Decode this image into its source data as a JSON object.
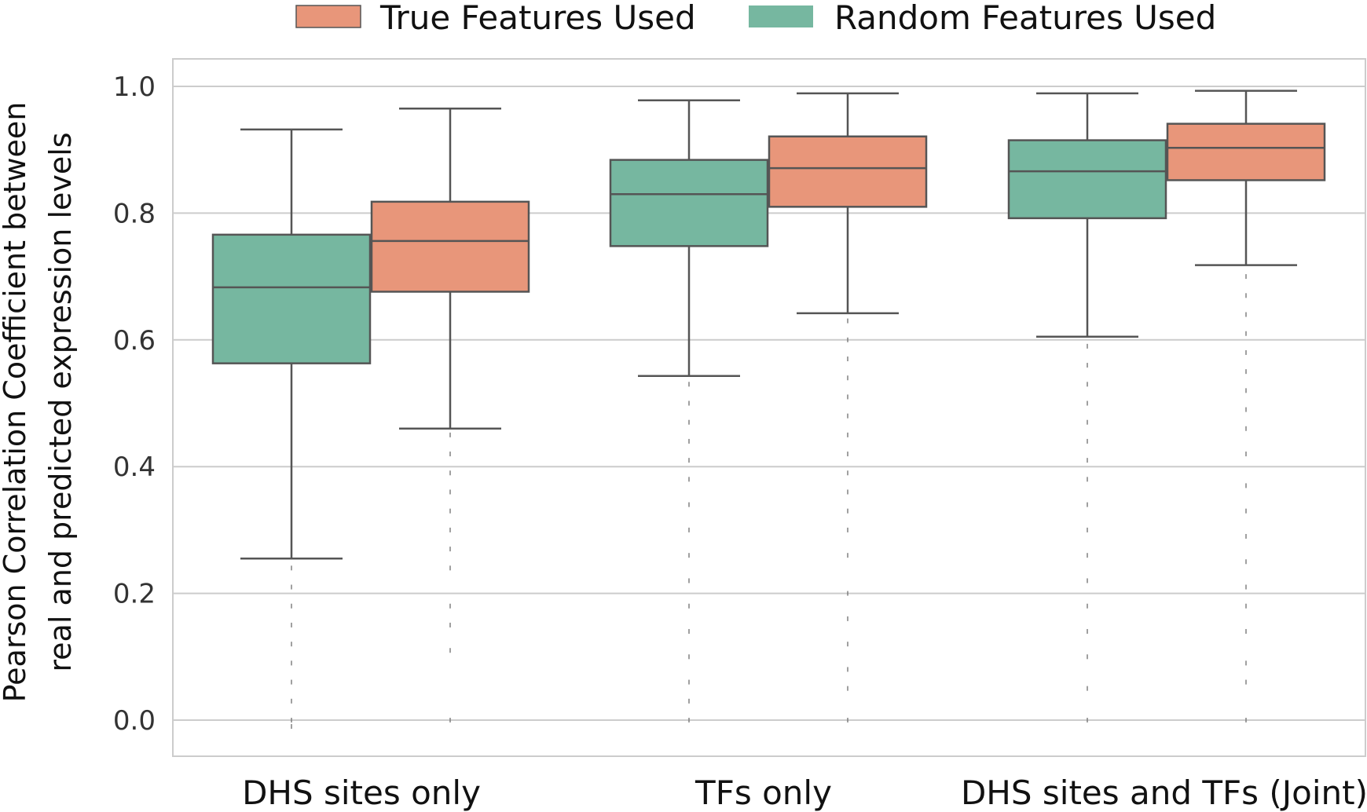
{
  "chart_data": {
    "type": "box",
    "title": "",
    "xlabel": "",
    "ylabel_lines": [
      "Pearson Correlation Coefficient between",
      "real and predicted expression levels"
    ],
    "ylim": [
      -0.06,
      1.045
    ],
    "yticks": [
      0.0,
      0.2,
      0.4,
      0.6,
      0.8,
      1.0
    ],
    "ytick_labels": [
      "0.0",
      "0.2",
      "0.4",
      "0.6",
      "0.8",
      "1.0"
    ],
    "grid": true,
    "legend_position": "top",
    "categories": [
      "DHS sites only",
      "TFs only",
      "DHS sites and TFs (Joint)"
    ],
    "series": [
      {
        "name": "Random Features Used",
        "color": "#76b7a0",
        "boxes": [
          {
            "whisker_low": 0.255,
            "q1": 0.563,
            "median": 0.683,
            "q3": 0.766,
            "whisker_high": 0.932,
            "outliers": [
              0.24,
              0.21,
              0.18,
              0.15,
              0.12,
              0.09,
              0.06,
              0.03,
              0.0,
              -0.01
            ]
          },
          {
            "whisker_low": 0.543,
            "q1": 0.748,
            "median": 0.83,
            "q3": 0.884,
            "whisker_high": 0.978,
            "outliers": [
              0.53,
              0.5,
              0.47,
              0.44,
              0.41,
              0.38,
              0.34,
              0.3,
              0.26,
              0.22,
              0.18,
              0.14,
              0.1,
              0.06,
              0.03,
              0.0
            ]
          },
          {
            "whisker_low": 0.605,
            "q1": 0.792,
            "median": 0.866,
            "q3": 0.915,
            "whisker_high": 0.989,
            "outliers": [
              0.59,
              0.56,
              0.53,
              0.5,
              0.47,
              0.44,
              0.41,
              0.38,
              0.34,
              0.3,
              0.26,
              0.22,
              0.18,
              0.14,
              0.1,
              0.05,
              0.0
            ]
          }
        ]
      },
      {
        "name": "True Features Used",
        "color": "#e8967a",
        "boxes": [
          {
            "whisker_low": 0.46,
            "q1": 0.676,
            "median": 0.756,
            "q3": 0.818,
            "whisker_high": 0.965,
            "outliers": [
              0.45,
              0.42,
              0.39,
              0.36,
              0.33,
              0.3,
              0.27,
              0.24,
              0.18,
              0.15,
              0.11,
              0.0
            ]
          },
          {
            "whisker_low": 0.642,
            "q1": 0.81,
            "median": 0.871,
            "q3": 0.921,
            "whisker_high": 0.989,
            "outliers": [
              0.63,
              0.6,
              0.57,
              0.54,
              0.51,
              0.48,
              0.45,
              0.42,
              0.39,
              0.36,
              0.33,
              0.3,
              0.26,
              0.2,
              0.16,
              0.12,
              0.08,
              0.05,
              0.0
            ]
          },
          {
            "whisker_low": 0.718,
            "q1": 0.852,
            "median": 0.903,
            "q3": 0.941,
            "whisker_high": 0.993,
            "outliers": [
              0.7,
              0.67,
              0.64,
              0.61,
              0.58,
              0.55,
              0.52,
              0.49,
              0.46,
              0.42,
              0.37,
              0.33,
              0.29,
              0.25,
              0.21,
              0.18,
              0.14,
              0.09,
              0.06,
              0.0
            ]
          }
        ]
      }
    ],
    "legend": [
      {
        "name": "True Features Used",
        "color": "#e8967a"
      },
      {
        "name": "Random Features Used",
        "color": "#76b7a0"
      }
    ]
  }
}
